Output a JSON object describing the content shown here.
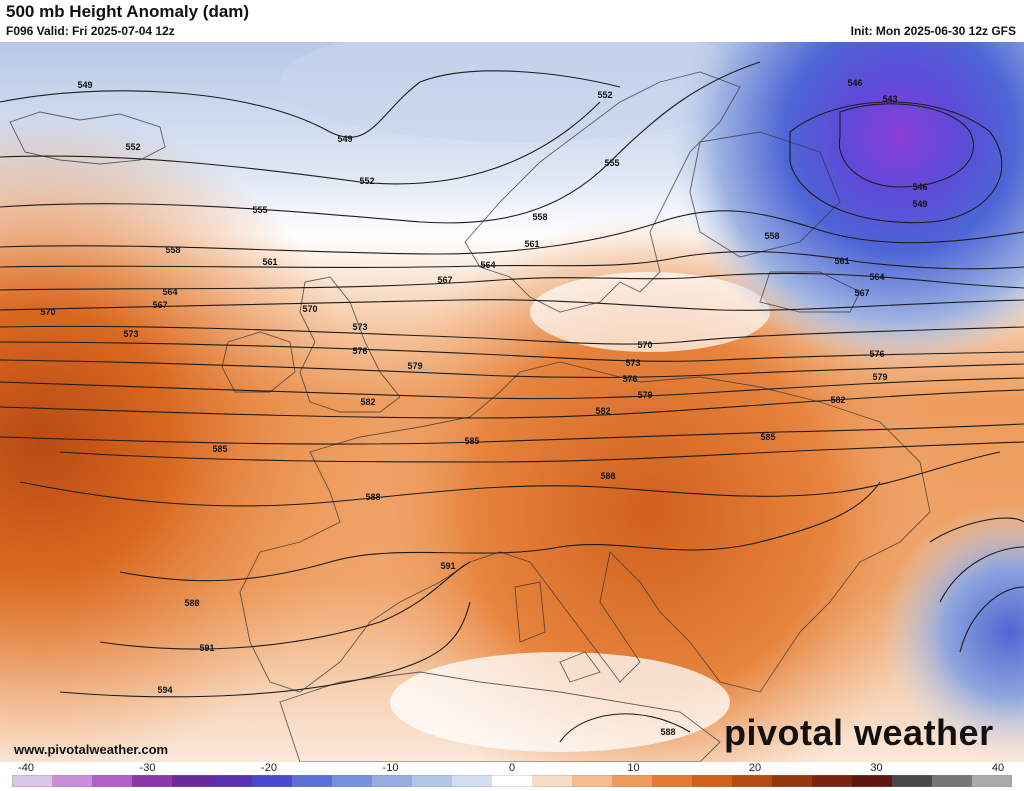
{
  "header": {
    "title": "500 mb Height Anomaly (dam)",
    "valid": "F096 Valid: Fri 2025-07-04 12z",
    "init": "Init: Mon 2025-06-30 12z GFS"
  },
  "footer": {
    "website": "www.pivotalweather.com",
    "brand": "pivotal weather"
  },
  "colorbar": {
    "min": -40,
    "max": 40,
    "tick_labels": [
      "-40",
      "-30",
      "-20",
      "-10",
      "0",
      "10",
      "20",
      "30",
      "40"
    ],
    "negative_colors": [
      "#d9c6e6",
      "#c98fd8",
      "#b260c8",
      "#8a3aa8",
      "#6b2a9a",
      "#5a2fb0",
      "#4848d0",
      "#5a6fd8",
      "#7890dc",
      "#98acdf",
      "#b4c6e6",
      "#d2dff0"
    ],
    "positive_colors": [
      "#f6ddc6",
      "#f2bd93",
      "#ee9a5e",
      "#e57a30",
      "#d35f1a",
      "#b74a12",
      "#963710",
      "#7a2410",
      "#5e1710",
      "#484848",
      "#777777",
      "#aaaaaa"
    ]
  },
  "contour_labels": [
    "543",
    "546",
    "549",
    "552",
    "555",
    "558",
    "561",
    "564",
    "567",
    "570",
    "573",
    "576",
    "579",
    "582",
    "585",
    "588",
    "591",
    "594"
  ],
  "map_labels": [
    {
      "text": "549"
    },
    {
      "text": "552"
    },
    {
      "text": "549"
    },
    {
      "text": "552"
    },
    {
      "text": "555"
    },
    {
      "text": "555"
    },
    {
      "text": "558"
    },
    {
      "text": "558"
    },
    {
      "text": "561"
    },
    {
      "text": "561"
    },
    {
      "text": "564"
    },
    {
      "text": "564"
    },
    {
      "text": "567"
    },
    {
      "text": "567"
    },
    {
      "text": "570"
    },
    {
      "text": "570"
    },
    {
      "text": "570"
    },
    {
      "text": "573"
    },
    {
      "text": "573"
    },
    {
      "text": "573"
    },
    {
      "text": "576"
    },
    {
      "text": "576"
    },
    {
      "text": "576"
    },
    {
      "text": "579"
    },
    {
      "text": "579"
    },
    {
      "text": "579"
    },
    {
      "text": "582"
    },
    {
      "text": "582"
    },
    {
      "text": "582"
    },
    {
      "text": "585"
    },
    {
      "text": "585"
    },
    {
      "text": "585"
    },
    {
      "text": "588"
    },
    {
      "text": "588"
    },
    {
      "text": "588"
    },
    {
      "text": "588"
    },
    {
      "text": "591"
    },
    {
      "text": "591"
    },
    {
      "text": "594"
    },
    {
      "text": "546"
    },
    {
      "text": "543"
    },
    {
      "text": "546"
    },
    {
      "text": "549"
    },
    {
      "text": "558"
    },
    {
      "text": "561"
    },
    {
      "text": "564"
    },
    {
      "text": "567"
    },
    {
      "text": "552"
    }
  ]
}
